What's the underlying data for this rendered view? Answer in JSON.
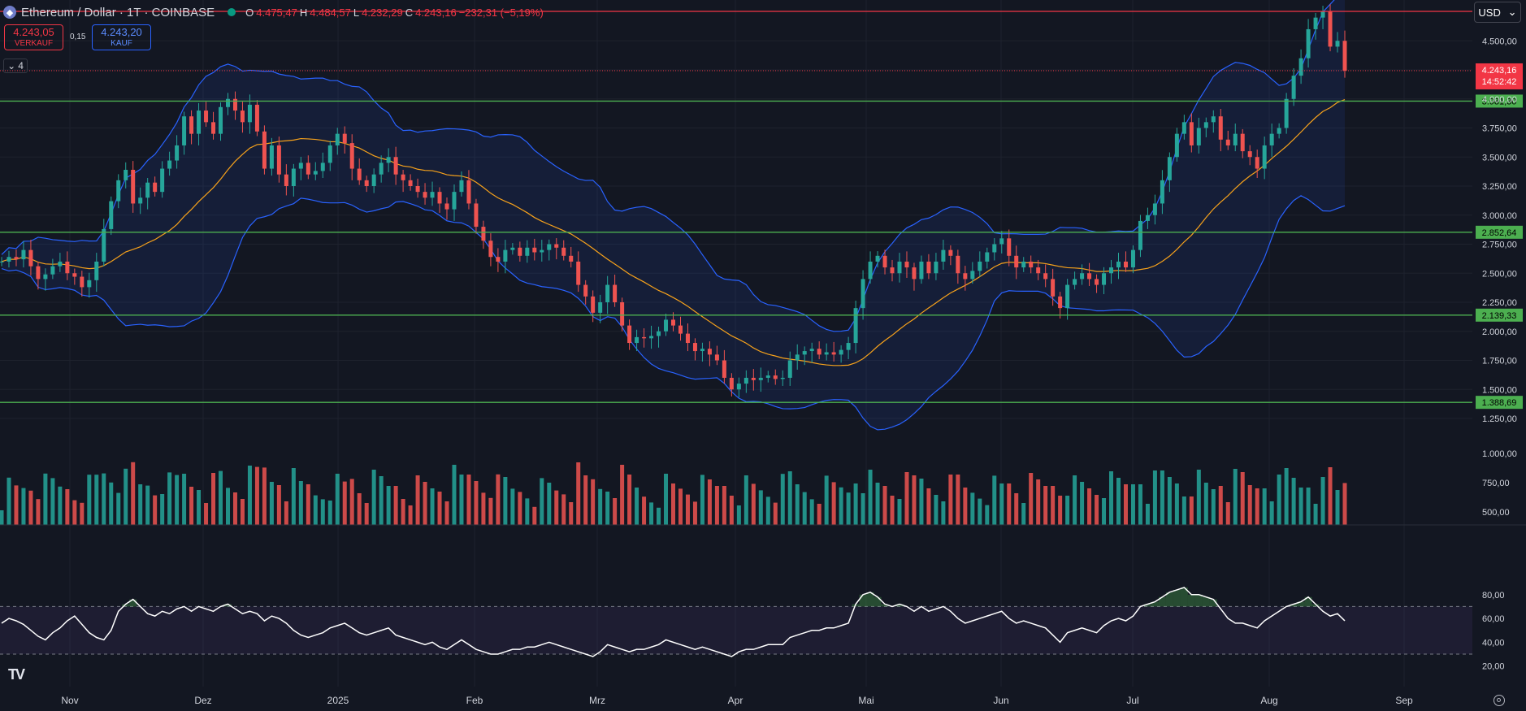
{
  "header": {
    "title": "Ethereum / Dollar · 1T · COINBASE",
    "ohlc": [
      {
        "k": "O",
        "v": "4.475,47"
      },
      {
        "k": "H",
        "v": "4.484,57"
      },
      {
        "k": "L",
        "v": "4.232,29"
      },
      {
        "k": "C",
        "v": "4.243,16"
      }
    ],
    "change": "−232,31 (−5,19%)"
  },
  "trade": {
    "sell_price": "4.243,05",
    "sell_label": "VERKAUF",
    "spread": "0,15",
    "buy_price": "4.243,20",
    "buy_label": "KAUF"
  },
  "indicators_toggle": "4",
  "currency": "USD",
  "colors": {
    "bg": "#131722",
    "up": "#26a69a",
    "down": "#ef5350",
    "band": "#2962ff",
    "basis": "#f7a21b",
    "level": "#4caf50",
    "rsi": "#ffffff",
    "price_tag": "#f23645"
  },
  "chart_data": [
    {
      "type": "candlestick",
      "description_label": "ETH/USD daily",
      "x_ticks": [
        "Nov",
        "Dez",
        "2025",
        "Feb",
        "Mrz",
        "Apr",
        "Mai",
        "Jun",
        "Jul",
        "Aug",
        "Sep"
      ],
      "y_ticks": [
        "4.500,00",
        "4.250,00",
        "4.000,00",
        "3.750,00",
        "3.500,00",
        "3.250,00",
        "3.000,00",
        "2.750,00",
        "2.500,00",
        "2.250,00",
        "2.000,00",
        "1.750,00",
        "1.500,00",
        "1.250,00",
        "1.000,00",
        "750,00",
        "500,00"
      ],
      "ylim": [
        500,
        4750
      ],
      "horizontal_levels": [
        {
          "value": 3981.3,
          "label": "3.981,30"
        },
        {
          "value": 2852.64,
          "label": "2.852,64"
        },
        {
          "value": 2139.33,
          "label": "2.139,33"
        },
        {
          "value": 1388.69,
          "label": "1.388,69"
        }
      ],
      "resistance_line": 4850,
      "last_price": {
        "value": 4243.16,
        "label": "4.243,16",
        "countdown": "14:52:42"
      },
      "close_series": [
        2600,
        2640,
        2620,
        2700,
        2560,
        2450,
        2490,
        2560,
        2600,
        2500,
        2470,
        2380,
        2440,
        2600,
        2880,
        3120,
        3300,
        3390,
        3100,
        3150,
        3280,
        3200,
        3400,
        3470,
        3600,
        3850,
        3700,
        3900,
        3800,
        3700,
        3930,
        4000,
        3900,
        3800,
        3950,
        3720,
        3400,
        3600,
        3350,
        3250,
        3400,
        3450,
        3350,
        3380,
        3450,
        3600,
        3700,
        3620,
        3400,
        3300,
        3250,
        3350,
        3450,
        3500,
        3350,
        3300,
        3250,
        3200,
        3150,
        3200,
        3100,
        3050,
        3200,
        3300,
        3100,
        2900,
        2780,
        2640,
        2600,
        2700,
        2720,
        2650,
        2720,
        2680,
        2700,
        2750,
        2720,
        2650,
        2600,
        2400,
        2300,
        2160,
        2250,
        2400,
        2250,
        2050,
        1900,
        1950,
        1940,
        1960,
        2000,
        2100,
        2050,
        1980,
        1900,
        1830,
        1850,
        1800,
        1750,
        1600,
        1500,
        1550,
        1600,
        1580,
        1600,
        1620,
        1590,
        1600,
        1750,
        1800,
        1830,
        1850,
        1800,
        1820,
        1800,
        1840,
        1900,
        2200,
        2450,
        2600,
        2650,
        2550,
        2500,
        2600,
        2550,
        2450,
        2600,
        2500,
        2600,
        2700,
        2650,
        2500,
        2450,
        2520,
        2600,
        2680,
        2750,
        2800,
        2650,
        2550,
        2600,
        2550,
        2500,
        2450,
        2300,
        2200,
        2400,
        2450,
        2500,
        2450,
        2400,
        2500,
        2550,
        2600,
        2550,
        2700,
        2950,
        3000,
        3100,
        3300,
        3500,
        3700,
        3800,
        3600,
        3750,
        3800,
        3850,
        3650,
        3600,
        3700,
        3550,
        3500,
        3400,
        3600,
        3700,
        3750,
        4000,
        4200,
        4350,
        4600,
        4700,
        4750,
        4450,
        4500,
        4243
      ],
      "volume_ticks": [
        "1.000,00",
        "750,00",
        "500,00"
      ]
    },
    {
      "type": "line",
      "description_label": "RSI",
      "y_ticks": [
        "80,00",
        "60,00",
        "40,00",
        "20,00"
      ],
      "ylim": [
        15,
        90
      ],
      "bands": [
        70,
        30
      ],
      "values": [
        56,
        60,
        58,
        55,
        50,
        45,
        42,
        48,
        52,
        58,
        62,
        55,
        48,
        44,
        42,
        50,
        66,
        72,
        76,
        70,
        64,
        62,
        66,
        64,
        68,
        70,
        66,
        70,
        68,
        66,
        70,
        72,
        68,
        64,
        66,
        64,
        58,
        62,
        60,
        56,
        50,
        46,
        44,
        46,
        48,
        52,
        54,
        56,
        52,
        48,
        46,
        48,
        50,
        52,
        46,
        44,
        42,
        40,
        38,
        40,
        36,
        34,
        38,
        42,
        38,
        34,
        32,
        30,
        30,
        32,
        34,
        34,
        36,
        36,
        38,
        40,
        38,
        36,
        34,
        32,
        30,
        28,
        32,
        38,
        36,
        34,
        32,
        34,
        34,
        36,
        38,
        42,
        40,
        38,
        36,
        34,
        36,
        34,
        32,
        30,
        28,
        32,
        34,
        34,
        36,
        38,
        38,
        38,
        44,
        46,
        48,
        50,
        50,
        52,
        52,
        54,
        56,
        72,
        80,
        82,
        78,
        72,
        70,
        72,
        70,
        66,
        70,
        66,
        68,
        70,
        66,
        60,
        56,
        58,
        60,
        62,
        64,
        66,
        60,
        56,
        58,
        56,
        54,
        52,
        46,
        40,
        48,
        50,
        52,
        50,
        48,
        54,
        58,
        60,
        58,
        62,
        70,
        72,
        74,
        78,
        82,
        84,
        86,
        80,
        80,
        78,
        76,
        68,
        60,
        56,
        56,
        54,
        52,
        58,
        62,
        66,
        70,
        72,
        74,
        78,
        72,
        66,
        62,
        64,
        58
      ]
    }
  ]
}
